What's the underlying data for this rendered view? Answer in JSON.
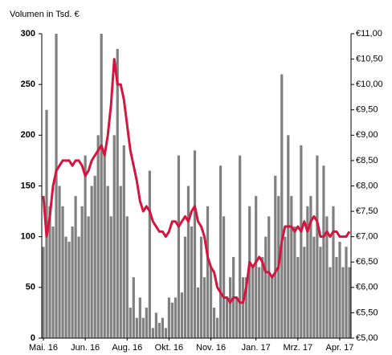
{
  "chart_data": {
    "type": "bar",
    "title": "Volumen in Tsd. €",
    "categories": [
      "Mai. 16",
      null,
      null,
      null,
      null,
      null,
      null,
      null,
      null,
      null,
      null,
      null,
      null,
      "Jun. 16",
      null,
      null,
      null,
      null,
      null,
      null,
      null,
      null,
      null,
      null,
      null,
      null,
      "Aug. 16",
      null,
      null,
      null,
      null,
      null,
      null,
      null,
      null,
      null,
      null,
      null,
      null,
      "Okt. 16",
      null,
      null,
      null,
      null,
      null,
      null,
      null,
      null,
      null,
      null,
      null,
      null,
      "Nov. 16",
      null,
      null,
      null,
      null,
      null,
      null,
      null,
      null,
      null,
      null,
      null,
      null,
      null,
      "Jan. 17",
      null,
      null,
      null,
      null,
      null,
      null,
      null,
      null,
      null,
      null,
      null,
      null,
      "Mrz. 17",
      null,
      null,
      null,
      null,
      null,
      null,
      null,
      null,
      null,
      null,
      null,
      null,
      "Apr. 17",
      null,
      null,
      null
    ],
    "series": [
      {
        "type": "bar",
        "color": "#808080",
        "values": [
          90,
          225,
          130,
          110,
          300,
          150,
          130,
          100,
          95,
          110,
          140,
          100,
          130,
          180,
          120,
          150,
          160,
          200,
          300,
          180,
          150,
          120,
          200,
          285,
          150,
          190,
          120,
          30,
          60,
          20,
          40,
          20,
          30,
          165,
          10,
          25,
          15,
          20,
          10,
          40,
          35,
          40,
          180,
          45,
          100,
          150,
          110,
          185,
          50,
          100,
          60,
          130,
          70,
          30,
          20,
          170,
          120,
          40,
          60,
          80,
          40,
          180,
          60,
          60,
          130,
          70,
          140,
          70,
          80,
          100,
          120,
          60,
          160,
          140,
          260,
          100,
          200,
          140,
          110,
          80,
          190,
          90,
          130,
          140,
          100,
          180,
          90,
          170,
          120,
          70,
          130,
          80,
          95,
          70,
          90,
          70
        ]
      },
      {
        "type": "line",
        "axis": "y2",
        "color": "#d6143e",
        "values": [
          7.8,
          7.0,
          7.4,
          8.0,
          8.3,
          8.4,
          8.5,
          8.5,
          8.5,
          8.4,
          8.5,
          8.5,
          8.4,
          8.2,
          8.3,
          8.5,
          8.6,
          8.7,
          8.8,
          8.6,
          9.0,
          9.6,
          10.5,
          10.0,
          10.0,
          9.7,
          9.2,
          8.7,
          8.4,
          8.1,
          7.7,
          7.5,
          7.6,
          7.5,
          7.3,
          7.2,
          7.1,
          7.1,
          7.0,
          7.1,
          7.3,
          7.3,
          7.2,
          7.3,
          7.4,
          7.3,
          7.5,
          7.6,
          7.3,
          7.2,
          7.0,
          6.6,
          6.4,
          6.3,
          6.0,
          5.9,
          5.8,
          5.8,
          5.7,
          5.8,
          5.8,
          5.7,
          5.7,
          6.0,
          6.5,
          6.4,
          6.5,
          6.6,
          6.5,
          6.3,
          6.3,
          6.2,
          6.3,
          6.4,
          6.9,
          7.2,
          7.2,
          7.2,
          7.1,
          7.2,
          7.1,
          7.3,
          7.1,
          7.3,
          7.4,
          7.3,
          7.0,
          7.0,
          7.1,
          7.0,
          7.1,
          7.1,
          7.0,
          7.0,
          7.0,
          7.1
        ]
      }
    ],
    "ylim": [
      0,
      300
    ],
    "yticks": [
      0,
      50,
      100,
      150,
      200,
      250,
      300
    ],
    "y2lim": [
      5,
      11
    ],
    "y2ticks": [
      {
        "value": 5,
        "label": "€5,00"
      },
      {
        "value": 5.5,
        "label": "€5,50"
      },
      {
        "value": 6,
        "label": "€6,00"
      },
      {
        "value": 6.5,
        "label": "€6,50"
      },
      {
        "value": 7,
        "label": "€7,00"
      },
      {
        "value": 7.5,
        "label": "€7,50"
      },
      {
        "value": 8,
        "label": "€8,00"
      },
      {
        "value": 8.5,
        "label": "€8,50"
      },
      {
        "value": 9,
        "label": "€9,00"
      },
      {
        "value": 9.5,
        "label": "€9,50"
      },
      {
        "value": 10,
        "label": "€10,00"
      },
      {
        "value": 10.5,
        "label": "€10,50"
      },
      {
        "value": 11,
        "label": "€11,00"
      }
    ],
    "grid": false
  }
}
